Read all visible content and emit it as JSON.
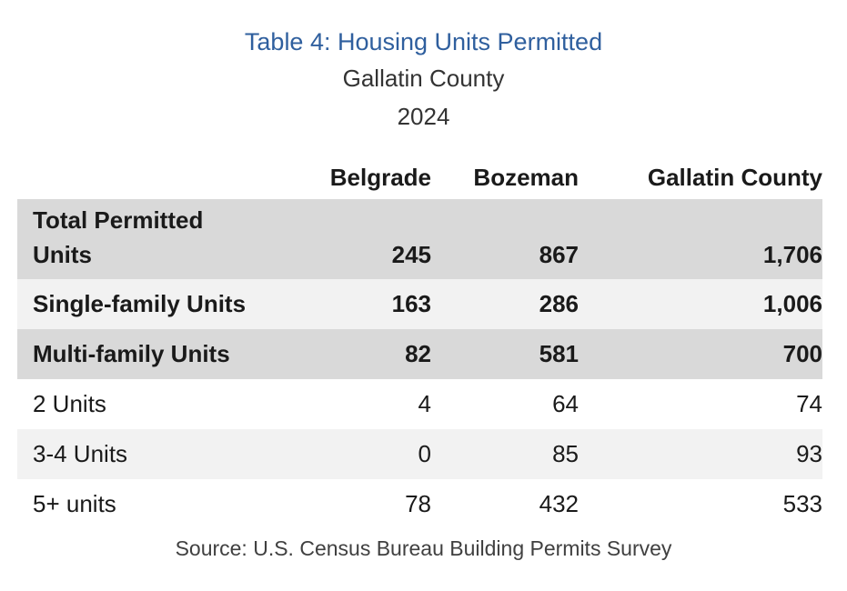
{
  "header": {
    "title": "Table 4: Housing Units Permitted",
    "subtitle": "Gallatin County",
    "year": "2024"
  },
  "table": {
    "columns": [
      "",
      "Belgrade",
      "Bozeman",
      "Gallatin County"
    ],
    "rows": [
      {
        "label": "Total Permitted Units",
        "values": [
          "245",
          "867",
          "1,706"
        ],
        "bold": true,
        "shade": "dark"
      },
      {
        "label": "Single-family Units",
        "values": [
          "163",
          "286",
          "1,006"
        ],
        "bold": true,
        "shade": "light"
      },
      {
        "label": "Multi-family Units",
        "values": [
          "82",
          "581",
          "700"
        ],
        "bold": true,
        "shade": "dark"
      },
      {
        "label": "2 Units",
        "values": [
          "4",
          "64",
          "74"
        ],
        "bold": false,
        "shade": "plain"
      },
      {
        "label": "3-4 Units",
        "values": [
          "0",
          "85",
          "93"
        ],
        "bold": false,
        "shade": "light"
      },
      {
        "label": "5+ units",
        "values": [
          "78",
          "432",
          "533"
        ],
        "bold": false,
        "shade": "plain"
      }
    ]
  },
  "source": "Source: U.S. Census Bureau Building Permits Survey",
  "colors": {
    "title": "#2f5f9e",
    "dark_row": "#d9d9d9",
    "light_row": "#f2f2f2"
  }
}
